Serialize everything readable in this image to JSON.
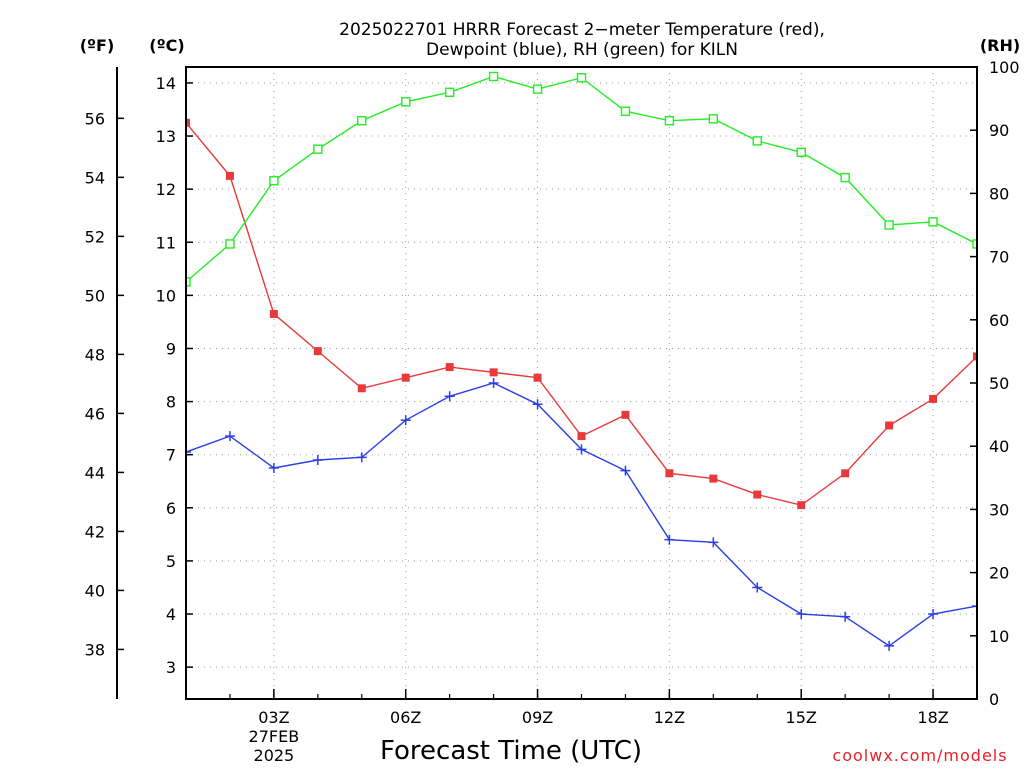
{
  "chart_data": {
    "type": "line",
    "title_line1": "2025022701 HRRR Forecast 2−meter Temperature (red),",
    "title_line2": "Dewpoint (blue), RH (green) for KILN",
    "xlabel": "Forecast Time (UTC)",
    "left_f_unit": "(ºF)",
    "left_c_unit": "(ºC)",
    "right_unit": "(RH)",
    "credit": "coolwx.com/models",
    "x": [
      1,
      2,
      3,
      4,
      5,
      6,
      7,
      8,
      9,
      10,
      11,
      12,
      13,
      14,
      15,
      16,
      17,
      18,
      19
    ],
    "xlim": [
      1,
      19
    ],
    "x_ticks": [
      {
        "x": 3,
        "label": "03Z",
        "extra": [
          "27FEB",
          "2025"
        ]
      },
      {
        "x": 6,
        "label": "06Z"
      },
      {
        "x": 9,
        "label": "09Z"
      },
      {
        "x": 12,
        "label": "12Z"
      },
      {
        "x": 15,
        "label": "15Z"
      },
      {
        "x": 18,
        "label": "18Z"
      }
    ],
    "celsius_axis": {
      "ylim": [
        2.4,
        14.3
      ],
      "ticks": [
        3,
        4,
        5,
        6,
        7,
        8,
        9,
        10,
        11,
        12,
        13,
        14
      ]
    },
    "fahrenheit_axis": {
      "ticks": [
        38,
        40,
        42,
        44,
        46,
        48,
        50,
        52,
        54,
        56
      ]
    },
    "rh_axis": {
      "ylim": [
        0,
        100
      ],
      "ticks": [
        0,
        10,
        20,
        30,
        40,
        50,
        60,
        70,
        80,
        90,
        100
      ]
    },
    "grid": true,
    "series": [
      {
        "name": "Temperature",
        "axis": "celsius",
        "color": "#e83a3a",
        "marker": "filled-square",
        "values": [
          13.25,
          12.25,
          9.65,
          8.95,
          8.25,
          8.45,
          8.65,
          8.55,
          8.45,
          7.35,
          7.75,
          6.65,
          6.55,
          6.25,
          6.05,
          6.65,
          7.55,
          8.05,
          8.85
        ]
      },
      {
        "name": "Dewpoint",
        "axis": "celsius",
        "color": "#2a3ee8",
        "marker": "plus",
        "values": [
          7.05,
          7.35,
          6.75,
          6.9,
          6.95,
          7.65,
          8.1,
          8.35,
          7.95,
          7.1,
          6.7,
          5.4,
          5.35,
          4.5,
          4.0,
          3.95,
          3.4,
          4.0,
          4.15
        ]
      },
      {
        "name": "RH",
        "axis": "rh",
        "color": "#22ee22",
        "marker": "open-square",
        "values": [
          66,
          72,
          82,
          87,
          91.5,
          94.5,
          96,
          98.5,
          96.5,
          98.3,
          93,
          91.5,
          91.8,
          88.3,
          86.5,
          82.5,
          75,
          75.5,
          72
        ]
      }
    ]
  }
}
